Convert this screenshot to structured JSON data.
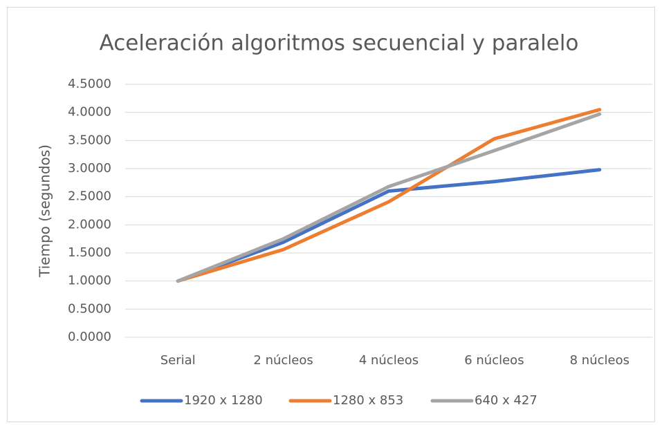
{
  "chart_data": {
    "type": "line",
    "title": "Aceleración algoritmos secuencial y paralelo",
    "y_label": "Tiempo (segundos)",
    "categories": [
      "Serial",
      "2 núcleos",
      "4 núcleos",
      "6 núcleos",
      "8 núcleos"
    ],
    "series": [
      {
        "name": "1920 x 1280",
        "color": "#4472c4",
        "values": [
          1.0,
          1.69,
          2.6,
          2.77,
          2.98
        ]
      },
      {
        "name": "1280 x 853",
        "color": "#ed7d31",
        "values": [
          1.0,
          1.56,
          2.41,
          3.53,
          4.05
        ]
      },
      {
        "name": "640 x 427",
        "color": "#a5a5a5",
        "values": [
          1.0,
          1.75,
          2.68,
          3.32,
          3.97
        ]
      }
    ],
    "ylim": [
      0,
      4.5
    ],
    "yticks": [
      {
        "value": 0,
        "label": "0.0000"
      },
      {
        "value": 0.5,
        "label": "0.5000"
      },
      {
        "value": 1,
        "label": "1.0000"
      },
      {
        "value": 1.5,
        "label": "1.5000"
      },
      {
        "value": 2,
        "label": "2.0000"
      },
      {
        "value": 2.5,
        "label": "2.5000"
      },
      {
        "value": 3,
        "label": "3.0000"
      },
      {
        "value": 3.5,
        "label": "3.5000"
      },
      {
        "value": 4,
        "label": "4.0000"
      },
      {
        "value": 4.5,
        "label": "4.5000"
      }
    ],
    "grid": true,
    "legend": "bottom"
  }
}
